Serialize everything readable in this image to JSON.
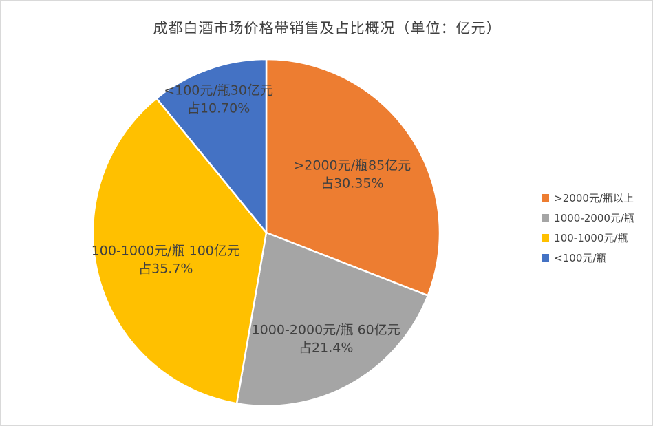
{
  "chart_data": {
    "type": "pie",
    "title": "成都白酒市场价格带销售及占比概况（单位：亿元）",
    "unit": "亿元",
    "legend_position": "right",
    "grid": false,
    "slices": [
      {
        "legend": ">2000元/瓶以上",
        "label_line1": ">2000元/瓶85亿元",
        "label_line2": "占30.35%",
        "value": 85,
        "percent": 30.35,
        "color": "#ED7D31"
      },
      {
        "legend": "1000-2000元/瓶",
        "label_line1": "1000-2000元/瓶 60亿元",
        "label_line2": "占21.4%",
        "value": 60,
        "percent": 21.4,
        "color": "#A5A5A5"
      },
      {
        "legend": "100-1000元/瓶",
        "label_line1": "100-1000元/瓶 100亿元",
        "label_line2": "占35.7%",
        "value": 100,
        "percent": 35.7,
        "color": "#FFC000"
      },
      {
        "legend": "<100元/瓶",
        "label_line1": "<100元/瓶30亿元",
        "label_line2": "占10.70%",
        "value": 30,
        "percent": 10.7,
        "color": "#4472C4"
      }
    ]
  }
}
